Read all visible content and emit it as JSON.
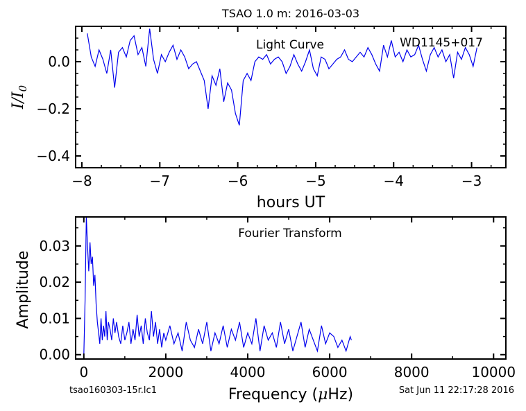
{
  "title": "TSAO 1.0 m:  2016-03-03",
  "footer": {
    "filename": "tsao160303-15r.lc1",
    "timestamp": "Sat Jun 11 22:17:28 2016"
  },
  "colors": {
    "series": "#0000ee",
    "axes": "#000000"
  },
  "chart_data": [
    {
      "type": "line",
      "annotation": "Light Curve",
      "object_label": "WD1145+017",
      "xlabel": "hours UT",
      "ylabel_tex": "I/I0",
      "ylabel_main": "I/I",
      "ylabel_sub": "0",
      "xlim": [
        -8.08,
        -2.56
      ],
      "ylim": [
        -0.45,
        0.15
      ],
      "xticks": [
        -8,
        -7,
        -6,
        -5,
        -4,
        -3
      ],
      "xtick_labels": [
        "−8",
        "−7",
        "−6",
        "−5",
        "−4",
        "−3"
      ],
      "yticks": [
        0.0,
        -0.2,
        -0.4
      ],
      "ytick_labels": [
        "0.0",
        "−0.2",
        "−0.4"
      ],
      "series": [
        {
          "x": [
            -7.93,
            -7.88,
            -7.83,
            -7.78,
            -7.73,
            -7.68,
            -7.63,
            -7.58,
            -7.53,
            -7.48,
            -7.43,
            -7.38,
            -7.33,
            -7.28,
            -7.23,
            -7.18,
            -7.13,
            -7.08,
            -7.03,
            -6.98,
            -6.93,
            -6.88,
            -6.83,
            -6.78,
            -6.73,
            -6.68,
            -6.63,
            -6.58,
            -6.53,
            -6.48,
            -6.43,
            -6.38,
            -6.33,
            -6.28,
            -6.23,
            -6.18,
            -6.13,
            -6.08,
            -6.03,
            -5.98,
            -5.93,
            -5.88,
            -5.83,
            -5.78,
            -5.73,
            -5.68,
            -5.63,
            -5.58,
            -5.53,
            -5.48,
            -5.43,
            -5.38,
            -5.33,
            -5.28,
            -5.23,
            -5.18,
            -5.13,
            -5.08,
            -5.03,
            -4.98,
            -4.93,
            -4.88,
            -4.83,
            -4.78,
            -4.73,
            -4.68,
            -4.63,
            -4.58,
            -4.53,
            -4.48,
            -4.43,
            -4.38,
            -4.33,
            -4.28,
            -4.23,
            -4.18,
            -4.13,
            -4.08,
            -4.03,
            -3.98,
            -3.93,
            -3.88,
            -3.83,
            -3.78,
            -3.73,
            -3.68,
            -3.63,
            -3.58,
            -3.53,
            -3.48,
            -3.43,
            -3.38,
            -3.33,
            -3.28,
            -3.23,
            -3.18,
            -3.13,
            -3.08,
            -3.03,
            -2.98,
            -2.93
          ],
          "y": [
            0.12,
            0.02,
            -0.02,
            0.05,
            0.01,
            -0.05,
            0.05,
            -0.11,
            0.04,
            0.06,
            0.02,
            0.09,
            0.11,
            0.03,
            0.06,
            -0.02,
            0.14,
            0.01,
            -0.05,
            0.03,
            0.0,
            0.04,
            0.07,
            0.01,
            0.05,
            0.02,
            -0.03,
            -0.01,
            0.0,
            -0.04,
            -0.08,
            -0.2,
            -0.06,
            -0.1,
            -0.03,
            -0.17,
            -0.09,
            -0.12,
            -0.22,
            -0.27,
            -0.08,
            -0.05,
            -0.08,
            0.0,
            0.02,
            0.01,
            0.03,
            -0.01,
            0.01,
            0.02,
            0.0,
            -0.05,
            -0.02,
            0.03,
            -0.01,
            -0.04,
            0.0,
            0.05,
            -0.03,
            -0.06,
            0.02,
            0.01,
            -0.03,
            -0.01,
            0.01,
            0.02,
            0.05,
            0.01,
            0.0,
            0.02,
            0.04,
            0.02,
            0.06,
            0.03,
            -0.01,
            -0.04,
            0.07,
            0.02,
            0.09,
            0.02,
            0.04,
            0.0,
            0.05,
            0.02,
            0.03,
            0.07,
            0.01,
            -0.04,
            0.03,
            0.06,
            0.02,
            0.05,
            0.0,
            0.03,
            -0.07,
            0.04,
            0.01,
            0.06,
            0.03,
            -0.02,
            0.06
          ]
        }
      ]
    },
    {
      "type": "line",
      "annotation": "Fourier Transform",
      "xlabel_prefix": "Frequency (",
      "xlabel_mu": "μ",
      "xlabel_suffix": "Hz)",
      "ylabel": "Amplitude",
      "xlim": [
        -200,
        10300
      ],
      "ylim": [
        -0.0012,
        0.038
      ],
      "xticks": [
        0,
        2000,
        4000,
        6000,
        8000,
        10000
      ],
      "xtick_labels": [
        "0",
        "2000",
        "4000",
        "6000",
        "8000",
        "10000"
      ],
      "yticks": [
        0.0,
        0.01,
        0.02,
        0.03
      ],
      "ytick_labels": [
        "0.00",
        "0.01",
        "0.02",
        "0.03"
      ],
      "series": [
        {
          "x": [
            0,
            30,
            60,
            90,
            120,
            150,
            180,
            210,
            240,
            270,
            300,
            330,
            360,
            390,
            420,
            450,
            480,
            510,
            540,
            570,
            600,
            640,
            680,
            720,
            760,
            800,
            850,
            900,
            950,
            1000,
            1050,
            1100,
            1150,
            1200,
            1250,
            1300,
            1350,
            1400,
            1450,
            1500,
            1550,
            1600,
            1650,
            1700,
            1750,
            1800,
            1850,
            1900,
            1950,
            2000,
            2100,
            2200,
            2300,
            2400,
            2500,
            2600,
            2700,
            2800,
            2900,
            3000,
            3100,
            3200,
            3300,
            3400,
            3500,
            3600,
            3700,
            3800,
            3900,
            4000,
            4100,
            4200,
            4300,
            4400,
            4500,
            4600,
            4700,
            4800,
            4900,
            5000,
            5100,
            5200,
            5300,
            5400,
            5500,
            5600,
            5700,
            5800,
            5900,
            6000,
            6100,
            6200,
            6300,
            6400,
            6500,
            6530
          ],
          "y": [
            0.0,
            0.015,
            0.038,
            0.03,
            0.023,
            0.031,
            0.025,
            0.027,
            0.019,
            0.022,
            0.014,
            0.009,
            0.006,
            0.003,
            0.01,
            0.004,
            0.008,
            0.005,
            0.012,
            0.004,
            0.009,
            0.007,
            0.004,
            0.01,
            0.006,
            0.009,
            0.005,
            0.003,
            0.008,
            0.004,
            0.006,
            0.009,
            0.003,
            0.007,
            0.004,
            0.011,
            0.005,
            0.008,
            0.003,
            0.01,
            0.006,
            0.004,
            0.012,
            0.005,
            0.009,
            0.003,
            0.007,
            0.002,
            0.006,
            0.004,
            0.008,
            0.003,
            0.006,
            0.001,
            0.009,
            0.004,
            0.002,
            0.007,
            0.003,
            0.009,
            0.001,
            0.006,
            0.003,
            0.008,
            0.002,
            0.007,
            0.004,
            0.009,
            0.002,
            0.006,
            0.003,
            0.01,
            0.001,
            0.008,
            0.004,
            0.006,
            0.002,
            0.009,
            0.003,
            0.007,
            0.001,
            0.005,
            0.009,
            0.002,
            0.007,
            0.004,
            0.001,
            0.008,
            0.003,
            0.006,
            0.005,
            0.002,
            0.004,
            0.001,
            0.005,
            0.004
          ]
        }
      ]
    }
  ]
}
